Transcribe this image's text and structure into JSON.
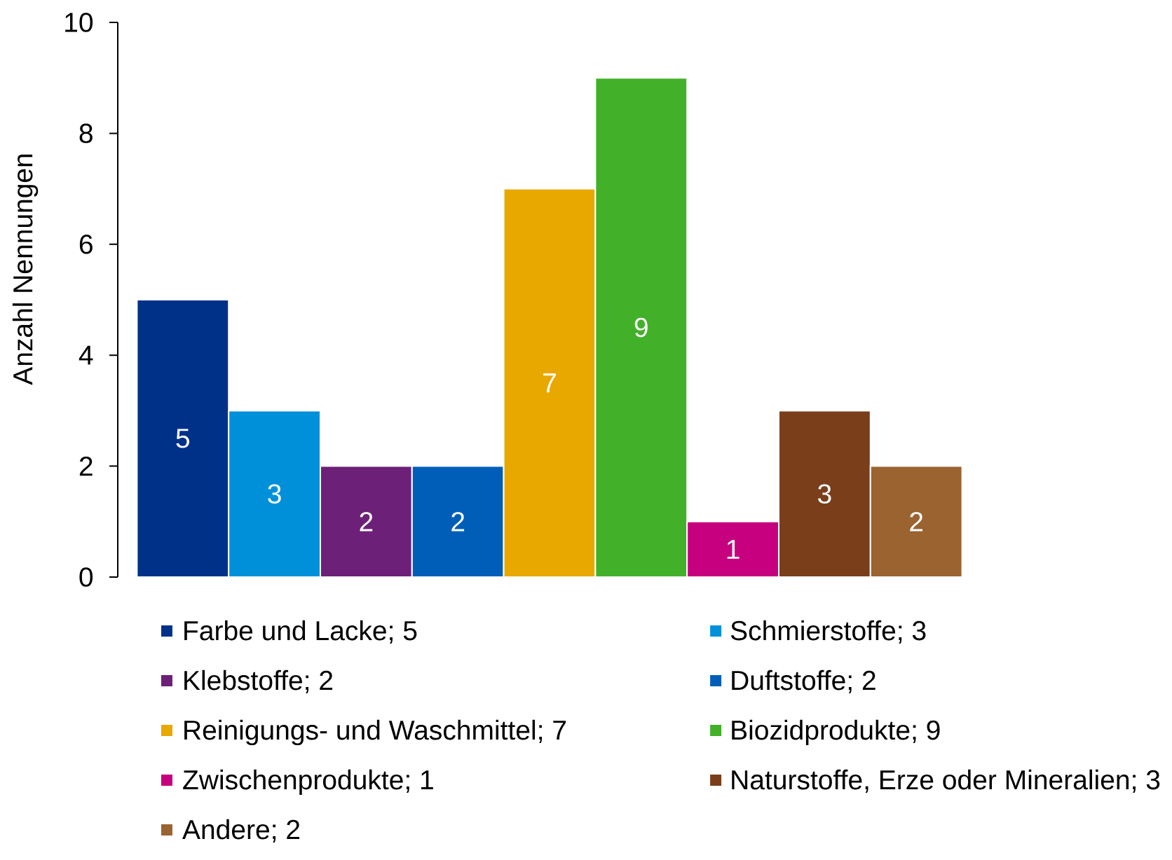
{
  "chart_data": {
    "type": "bar",
    "ylabel": "Anzahl Nennungen",
    "categories": [
      null
    ],
    "series": [
      {
        "name": "Farbe und Lacke; 5",
        "color": "#003189",
        "values": [
          5
        ]
      },
      {
        "name": "Schmierstoffe; 3",
        "color": "#0090da",
        "values": [
          3
        ]
      },
      {
        "name": "Klebstoffe; 2",
        "color": "#6d2077",
        "values": [
          2
        ]
      },
      {
        "name": "Duftstoffe; 2",
        "color": "#005eb8",
        "values": [
          2
        ]
      },
      {
        "name": "Reinigungs- und Waschmittel; 7",
        "color": "#e8a800",
        "values": [
          7
        ]
      },
      {
        "name": "Biozidprodukte; 9",
        "color": "#43b02a",
        "values": [
          9
        ]
      },
      {
        "name": "Zwischenprodukte; 1",
        "color": "#c6007e",
        "values": [
          1
        ]
      },
      {
        "name": "Naturstoffe, Erze oder Mineralien; 3",
        "color": "#7a3e1b",
        "values": [
          3
        ]
      },
      {
        "name": "Andere; 2",
        "color": "#9b6330",
        "values": [
          2
        ]
      }
    ],
    "ylim": [
      0,
      10
    ],
    "yticks": [
      0,
      2,
      4,
      6,
      8,
      10
    ],
    "data_labels": true,
    "legend": "bottom"
  }
}
